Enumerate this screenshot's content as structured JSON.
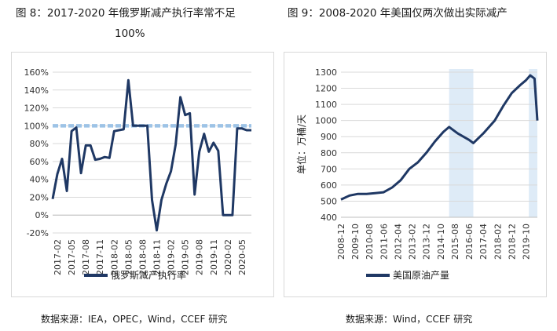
{
  "figure1": {
    "title_line1": "图 8：2017-2020 年俄罗斯减产执行率常不足",
    "title_line2": "100%",
    "source": "数据来源：IEA，OPEC，Wind，CCEF 研究"
  },
  "figure2": {
    "title": "图 9：2008-2020 年美国仅两次做出实际减产",
    "source": "数据来源：Wind，CCEF 研究"
  },
  "colors": {
    "line": "#1f3864",
    "reference": "#9dc3e6",
    "shade": "#deebf7",
    "grid": "#d9d9d9"
  },
  "chart_data": [
    {
      "type": "line",
      "series": [
        {
          "name": "俄罗斯减产执行率",
          "x": [
            "2017-01",
            "2017-02",
            "2017-03",
            "2017-04",
            "2017-05",
            "2017-06",
            "2017-07",
            "2017-08",
            "2017-09",
            "2017-10",
            "2017-11",
            "2017-12",
            "2018-01",
            "2018-02",
            "2018-03",
            "2018-04",
            "2018-05",
            "2018-06",
            "2018-07",
            "2018-08",
            "2018-09",
            "2018-10",
            "2018-11",
            "2018-12",
            "2019-01",
            "2019-02",
            "2019-03",
            "2019-04",
            "2019-05",
            "2019-06",
            "2019-07",
            "2019-08",
            "2019-09",
            "2019-10",
            "2019-11",
            "2019-12",
            "2020-01",
            "2020-02",
            "2020-03",
            "2020-04",
            "2020-05",
            "2020-06",
            "2020-07"
          ],
          "values": [
            18,
            46,
            63,
            27,
            94,
            98,
            47,
            78,
            78,
            62,
            63,
            65,
            64,
            94,
            95,
            96,
            151,
            100,
            100,
            100,
            100,
            17,
            -17,
            17,
            35,
            49,
            79,
            132,
            112,
            114,
            23,
            71,
            91,
            71,
            81,
            72,
            0,
            0,
            0,
            97,
            97,
            95,
            95
          ]
        }
      ],
      "reference_line": {
        "value": 100
      },
      "x_tick_labels": [
        "2017-02",
        "2017-05",
        "2017-08",
        "2017-11",
        "2018-02",
        "2018-05",
        "2018-08",
        "2018-11",
        "2019-02",
        "2019-05",
        "2019-08",
        "2019-11",
        "2020-02",
        "2020-05"
      ],
      "y_tick_labels": [
        "-20%",
        "0%",
        "20%",
        "40%",
        "60%",
        "80%",
        "100%",
        "120%",
        "140%",
        "160%"
      ],
      "ylim": [
        -20,
        160
      ],
      "y_unit": "%",
      "grid": true,
      "legend": "bottom"
    },
    {
      "type": "line",
      "series": [
        {
          "name": "美国原油产量",
          "x": [
            "2008-12",
            "2009-06",
            "2009-12",
            "2010-06",
            "2010-12",
            "2011-06",
            "2011-12",
            "2012-06",
            "2012-12",
            "2013-06",
            "2013-12",
            "2014-06",
            "2014-12",
            "2015-04",
            "2015-10",
            "2016-06",
            "2016-09",
            "2017-04",
            "2017-12",
            "2018-06",
            "2018-12",
            "2019-06",
            "2019-10",
            "2020-01",
            "2020-04",
            "2020-06"
          ],
          "values": [
            510,
            535,
            545,
            545,
            550,
            555,
            585,
            630,
            700,
            740,
            800,
            870,
            930,
            960,
            920,
            880,
            860,
            920,
            1000,
            1090,
            1170,
            1220,
            1250,
            1280,
            1260,
            1000
          ]
        }
      ],
      "shaded_periods": [
        [
          "2015-04",
          "2016-09"
        ],
        [
          "2019-12",
          "2020-06"
        ]
      ],
      "x_tick_labels": [
        "2008-12",
        "2009-10",
        "2010-08",
        "2011-06",
        "2012-04",
        "2013-02",
        "2013-12",
        "2014-10",
        "2015-08",
        "2016-06",
        "2017-04",
        "2018-02",
        "2018-12",
        "2019-10"
      ],
      "y_tick_labels": [
        "400",
        "500",
        "600",
        "700",
        "800",
        "900",
        "1000",
        "1100",
        "1200",
        "1300"
      ],
      "ylim": [
        400,
        1300
      ],
      "ylabel": "单位：万桶/天",
      "grid": true,
      "legend": "bottom"
    }
  ]
}
